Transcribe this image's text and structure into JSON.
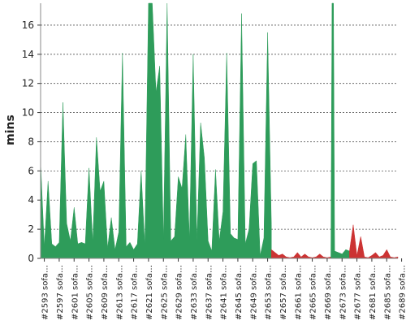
{
  "chart_data": {
    "type": "area",
    "ylabel": "mins",
    "xlabel": "",
    "ylim": [
      0,
      17.5
    ],
    "yticks": [
      0,
      2,
      4,
      6,
      8,
      10,
      12,
      14,
      16
    ],
    "grid": true,
    "x_tick_labels": [
      "#2593 sofa…",
      "#2597 sofa…",
      "#2601 sofa…",
      "#2605 sofa…",
      "#2609 sofa…",
      "#2613 sofa…",
      "#2617 sofa…",
      "#2621 sofa…",
      "#2625 sofa…",
      "#2629 sofa…",
      "#2633 sofa…",
      "#2637 sofa…",
      "#2641 sofa…",
      "#2645 sofa…",
      "#2649 sofa…",
      "#2653 sofa…",
      "#2657 sofa…",
      "#2661 sofa…",
      "#2665 sofa…",
      "#2669 sofa…",
      "#2673 sofa…",
      "#2677 sofa…",
      "#2681 sofa…",
      "#2685 sofa…",
      "#2689 sofa…"
    ],
    "x_first_build": 2592,
    "series": [
      {
        "color": "#2e9c5a",
        "points": [
          [
            2592,
            6.6
          ],
          [
            2593,
            0.8
          ],
          [
            2594,
            5.3
          ],
          [
            2595,
            1.0
          ],
          [
            2596,
            0.8
          ],
          [
            2597,
            1.1
          ],
          [
            2598,
            10.7
          ],
          [
            2599,
            2.4
          ],
          [
            2600,
            1.2
          ],
          [
            2601,
            3.5
          ],
          [
            2602,
            1.0
          ],
          [
            2603,
            1.1
          ],
          [
            2604,
            1.0
          ],
          [
            2605,
            6.2
          ],
          [
            2606,
            1.1
          ],
          [
            2607,
            8.3
          ],
          [
            2608,
            4.6
          ],
          [
            2609,
            5.3
          ],
          [
            2610,
            0.7
          ],
          [
            2611,
            2.8
          ],
          [
            2612,
            0.6
          ],
          [
            2613,
            1.8
          ],
          [
            2614,
            14.1
          ],
          [
            2615,
            0.8
          ],
          [
            2616,
            1.1
          ],
          [
            2617,
            0.6
          ],
          [
            2618,
            1.0
          ],
          [
            2619,
            6.0
          ],
          [
            2620,
            0.9
          ],
          [
            2621,
            17.5
          ],
          [
            2622,
            17.5
          ],
          [
            2623,
            11.4
          ],
          [
            2624,
            13.2
          ],
          [
            2625,
            1.3
          ],
          [
            2626,
            17.5
          ],
          [
            2627,
            1.2
          ],
          [
            2628,
            1.5
          ],
          [
            2629,
            5.6
          ],
          [
            2630,
            4.8
          ],
          [
            2631,
            8.5
          ],
          [
            2632,
            1.3
          ],
          [
            2633,
            14.0
          ],
          [
            2634,
            1.2
          ],
          [
            2635,
            9.3
          ],
          [
            2636,
            6.9
          ],
          [
            2637,
            1.2
          ],
          [
            2638,
            0.5
          ],
          [
            2639,
            6.1
          ],
          [
            2640,
            1.2
          ],
          [
            2641,
            3.2
          ],
          [
            2642,
            14.1
          ],
          [
            2643,
            1.7
          ],
          [
            2644,
            1.4
          ],
          [
            2645,
            1.3
          ],
          [
            2646,
            16.8
          ],
          [
            2647,
            1.0
          ],
          [
            2648,
            2.0
          ],
          [
            2649,
            6.5
          ],
          [
            2650,
            6.7
          ],
          [
            2651,
            0.2
          ],
          [
            2652,
            1.4
          ],
          [
            2653,
            15.5
          ],
          [
            2654,
            2.3
          ]
        ]
      },
      {
        "color": "#cc3333",
        "points": [
          [
            2654,
            0.6
          ],
          [
            2655,
            0.4
          ],
          [
            2656,
            0.2
          ],
          [
            2657,
            0.3
          ],
          [
            2658,
            0.1
          ],
          [
            2659,
            0.05
          ],
          [
            2660,
            0.1
          ],
          [
            2661,
            0.4
          ],
          [
            2662,
            0.1
          ],
          [
            2663,
            0.3
          ],
          [
            2664,
            0.1
          ],
          [
            2665,
            0.05
          ],
          [
            2666,
            0.1
          ],
          [
            2667,
            0.3
          ],
          [
            2668,
            0.1
          ],
          [
            2669,
            0.05
          ],
          [
            2670,
            0.1
          ]
        ]
      },
      {
        "color": "#2e9c5a",
        "points": [
          [
            2670,
            0.1
          ],
          [
            2670.3,
            17.5
          ],
          [
            2670.7,
            17.5
          ],
          [
            2671,
            0.5
          ],
          [
            2672,
            0.4
          ],
          [
            2673,
            0.3
          ],
          [
            2674,
            0.6
          ],
          [
            2675,
            0.5
          ]
        ]
      },
      {
        "color": "#cc3333",
        "points": [
          [
            2675,
            0.5
          ],
          [
            2676,
            2.3
          ],
          [
            2677,
            0.2
          ],
          [
            2678,
            1.5
          ],
          [
            2679,
            0.1
          ],
          [
            2680,
            0.05
          ],
          [
            2681,
            0.2
          ],
          [
            2682,
            0.4
          ],
          [
            2683,
            0.1
          ],
          [
            2684,
            0.2
          ],
          [
            2685,
            0.6
          ],
          [
            2686,
            0.1
          ],
          [
            2687,
            0.05
          ],
          [
            2688,
            0.1
          ]
        ]
      }
    ]
  }
}
